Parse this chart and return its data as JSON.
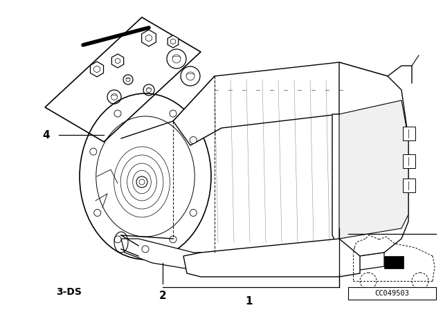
{
  "background_color": "#ffffff",
  "label_4": "4",
  "label_2": "2",
  "label_1": "1",
  "label_3ds": "3-DS",
  "part_number": "CC049503",
  "fig_width": 6.4,
  "fig_height": 4.48,
  "dpi": 100,
  "line_color": "#000000"
}
